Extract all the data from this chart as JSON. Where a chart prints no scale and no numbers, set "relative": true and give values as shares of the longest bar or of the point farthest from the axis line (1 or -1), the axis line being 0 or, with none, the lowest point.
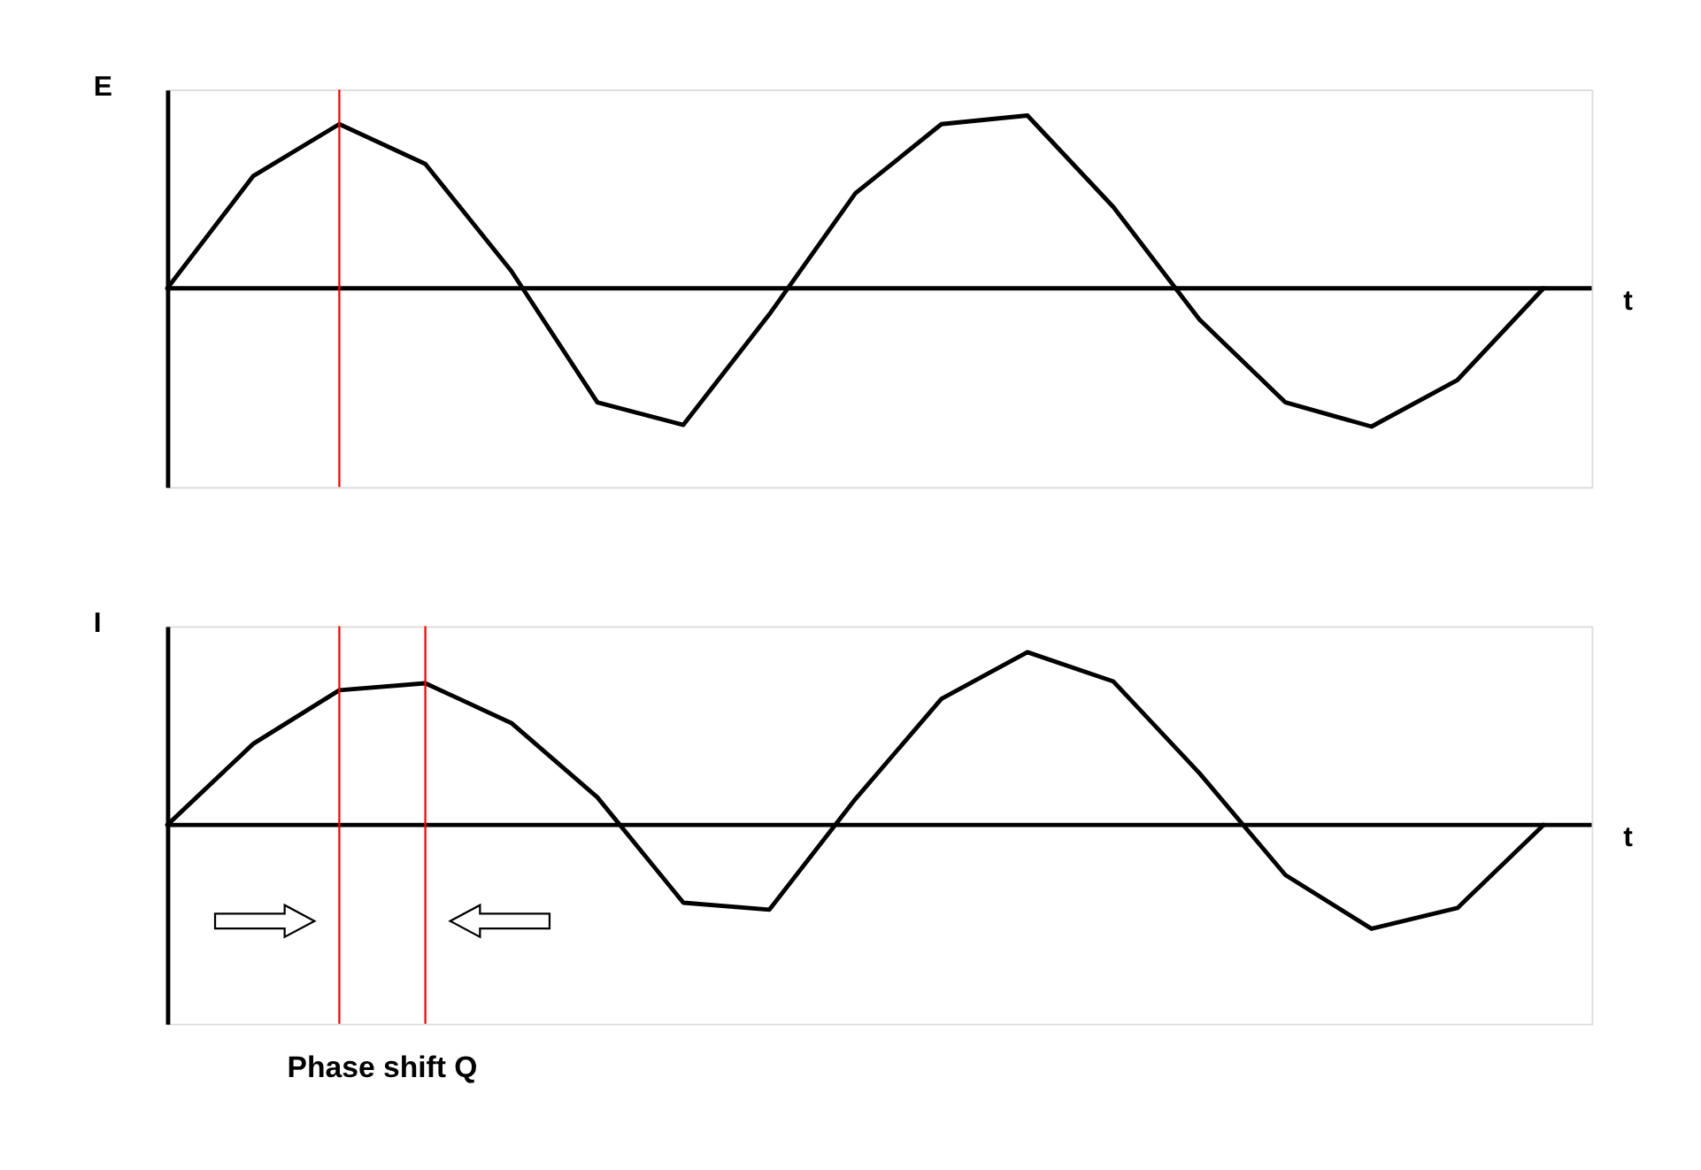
{
  "chart_data": [
    {
      "type": "line",
      "relative": true,
      "ylabel": "E",
      "xlabel": "t",
      "tick_labels": false,
      "grid": false,
      "marker": "none",
      "line_style": "solid",
      "categories": [
        null,
        null,
        null,
        null,
        null,
        null,
        null,
        null,
        null,
        null,
        null,
        null,
        null,
        null,
        null,
        null,
        null
      ],
      "series": [
        {
          "color": "#000000",
          "values": [
            0,
            0.65,
            0.95,
            0.72,
            0.1,
            -0.66,
            -0.79,
            -0.15,
            0.55,
            0.95,
            1,
            0.47,
            -0.18,
            -0.66,
            -0.8,
            -0.53,
            0
          ]
        }
      ]
    },
    {
      "type": "line",
      "relative": true,
      "ylabel": "I",
      "xlabel": "t",
      "tick_labels": false,
      "grid": false,
      "marker": "none",
      "line_style": "solid",
      "categories": [
        null,
        null,
        null,
        null,
        null,
        null,
        null,
        null,
        null,
        null,
        null,
        null,
        null,
        null,
        null,
        null,
        null
      ],
      "series": [
        {
          "color": "#000000",
          "values": [
            0,
            0.47,
            0.78,
            0.82,
            0.59,
            0.16,
            -0.45,
            -0.49,
            0.15,
            0.73,
            1,
            0.83,
            0.3,
            -0.29,
            -0.6,
            -0.48,
            0
          ]
        }
      ],
      "annotations": [
        "Phase shift Q"
      ]
    }
  ]
}
